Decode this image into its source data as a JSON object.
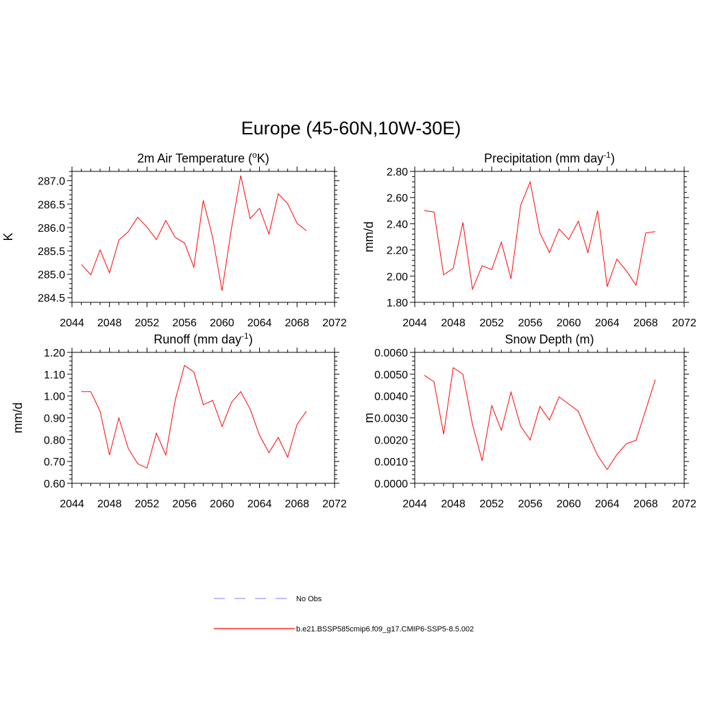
{
  "figure": {
    "title": "Europe (45-60N,10W-30E)"
  },
  "legend": {
    "entries": [
      {
        "label": "No Obs",
        "color": "#9999ff",
        "dash": "dashed"
      },
      {
        "label": "b.e21.BSSP585cmip6.f09_g17.CMIP6-SSP5-8.5.002",
        "color": "#ff0000",
        "dash": "solid"
      }
    ]
  },
  "colors": {
    "series": "#ff0000",
    "obs": "#9999ff",
    "axis": "#000000"
  },
  "chart_data": [
    {
      "type": "line",
      "title": "2m Air Temperature (",
      "title_sup_o": "o",
      "title_rest": "K)",
      "ylabel": "K",
      "xlim": [
        2044,
        2072
      ],
      "ylim": [
        284.4,
        287.2
      ],
      "xticks": [
        2044,
        2048,
        2052,
        2056,
        2060,
        2064,
        2068,
        2072
      ],
      "xticklabels": [
        "2044",
        "2048",
        "2052",
        "2056",
        "2060",
        "2064",
        "2068",
        "2072"
      ],
      "yticks": [
        284.5,
        285.0,
        285.5,
        286.0,
        286.5,
        287.0
      ],
      "yticklabels": [
        "284.5",
        "285.0",
        "285.5",
        "286.0",
        "286.5",
        "287.0"
      ],
      "series": [
        {
          "name": "b.e21.BSSP585cmip6.f09_g17.CMIP6-SSP5-8.5.002",
          "x": [
            2045,
            2046,
            2047,
            2048,
            2049,
            2050,
            2051,
            2052,
            2053,
            2054,
            2055,
            2056,
            2057,
            2058,
            2059,
            2060,
            2061,
            2062,
            2063,
            2064,
            2065,
            2066,
            2067,
            2068,
            2069
          ],
          "values": [
            285.21,
            284.99,
            285.52,
            285.03,
            285.73,
            285.91,
            286.22,
            286.01,
            285.74,
            286.15,
            285.79,
            285.67,
            285.15,
            286.58,
            285.79,
            284.65,
            285.97,
            287.11,
            286.19,
            286.41,
            285.86,
            286.72,
            286.51,
            286.09,
            285.93
          ]
        }
      ]
    },
    {
      "type": "line",
      "title": "Precipitation (mm day",
      "title_sup": "-1",
      "title_rest": ")",
      "ylabel": "mm/d",
      "xlim": [
        2044,
        2072
      ],
      "ylim": [
        1.8,
        2.8
      ],
      "xticks": [
        2044,
        2048,
        2052,
        2056,
        2060,
        2064,
        2068,
        2072
      ],
      "xticklabels": [
        "2044",
        "2048",
        "2052",
        "2056",
        "2060",
        "2064",
        "2068",
        "2072"
      ],
      "yticks": [
        1.8,
        2.0,
        2.2,
        2.4,
        2.6,
        2.8
      ],
      "yticklabels": [
        "1.80",
        "2.00",
        "2.20",
        "2.40",
        "2.60",
        "2.80"
      ],
      "series": [
        {
          "name": "b.e21.BSSP585cmip6.f09_g17.CMIP6-SSP5-8.5.002",
          "x": [
            2045,
            2046,
            2047,
            2048,
            2049,
            2050,
            2051,
            2052,
            2053,
            2054,
            2055,
            2056,
            2057,
            2058,
            2059,
            2060,
            2061,
            2062,
            2063,
            2064,
            2065,
            2066,
            2067,
            2068,
            2069
          ],
          "values": [
            2.5,
            2.49,
            2.01,
            2.06,
            2.41,
            1.9,
            2.08,
            2.05,
            2.26,
            1.98,
            2.54,
            2.72,
            2.33,
            2.18,
            2.36,
            2.28,
            2.42,
            2.18,
            2.5,
            1.92,
            2.13,
            2.04,
            1.93,
            2.33,
            2.34
          ]
        }
      ]
    },
    {
      "type": "line",
      "title": "Runoff (mm day",
      "title_sup": "-1",
      "title_rest": ")",
      "ylabel": "mm/d",
      "xlim": [
        2044,
        2072
      ],
      "ylim": [
        0.6,
        1.2
      ],
      "xticks": [
        2044,
        2048,
        2052,
        2056,
        2060,
        2064,
        2068,
        2072
      ],
      "xticklabels": [
        "2044",
        "2048",
        "2052",
        "2056",
        "2060",
        "2064",
        "2068",
        "2072"
      ],
      "yticks": [
        0.6,
        0.7,
        0.8,
        0.9,
        1.0,
        1.1,
        1.2
      ],
      "yticklabels": [
        "0.60",
        "0.70",
        "0.80",
        "0.90",
        "1.00",
        "1.10",
        "1.20"
      ],
      "series": [
        {
          "name": "b.e21.BSSP585cmip6.f09_g17.CMIP6-SSP5-8.5.002",
          "x": [
            2045,
            2046,
            2047,
            2048,
            2049,
            2050,
            2051,
            2052,
            2053,
            2054,
            2055,
            2056,
            2057,
            2058,
            2059,
            2060,
            2061,
            2062,
            2063,
            2064,
            2065,
            2066,
            2067,
            2068,
            2069
          ],
          "values": [
            1.02,
            1.02,
            0.93,
            0.73,
            0.9,
            0.76,
            0.69,
            0.67,
            0.83,
            0.73,
            0.98,
            1.14,
            1.11,
            0.96,
            0.98,
            0.86,
            0.97,
            1.02,
            0.94,
            0.82,
            0.74,
            0.81,
            0.72,
            0.87,
            0.93
          ]
        }
      ]
    },
    {
      "type": "line",
      "title": "Snow Depth (m)",
      "ylabel": "m",
      "xlim": [
        2044,
        2072
      ],
      "ylim": [
        0.0,
        0.006
      ],
      "xticks": [
        2044,
        2048,
        2052,
        2056,
        2060,
        2064,
        2068,
        2072
      ],
      "xticklabels": [
        "2044",
        "2048",
        "2052",
        "2056",
        "2060",
        "2064",
        "2068",
        "2072"
      ],
      "yticks": [
        0.0,
        0.001,
        0.002,
        0.003,
        0.004,
        0.005,
        0.006
      ],
      "yticklabels": [
        "0.0000",
        "0.0010",
        "0.0020",
        "0.0030",
        "0.0040",
        "0.0050",
        "0.0060"
      ],
      "series": [
        {
          "name": "b.e21.BSSP585cmip6.f09_g17.CMIP6-SSP5-8.5.002",
          "x": [
            2045,
            2046,
            2047,
            2048,
            2049,
            2050,
            2051,
            2052,
            2053,
            2054,
            2055,
            2056,
            2057,
            2058,
            2059,
            2060,
            2061,
            2062,
            2063,
            2064,
            2065,
            2066,
            2067,
            2068,
            2069
          ],
          "values": [
            0.00495,
            0.00465,
            0.00225,
            0.0053,
            0.005,
            0.0027,
            0.00103,
            0.00356,
            0.00243,
            0.00418,
            0.00262,
            0.00199,
            0.00352,
            0.0029,
            0.00396,
            0.00363,
            0.0033,
            0.00225,
            0.00128,
            0.00063,
            0.00132,
            0.00182,
            0.00197,
            0.00336,
            0.00475
          ]
        }
      ]
    }
  ]
}
